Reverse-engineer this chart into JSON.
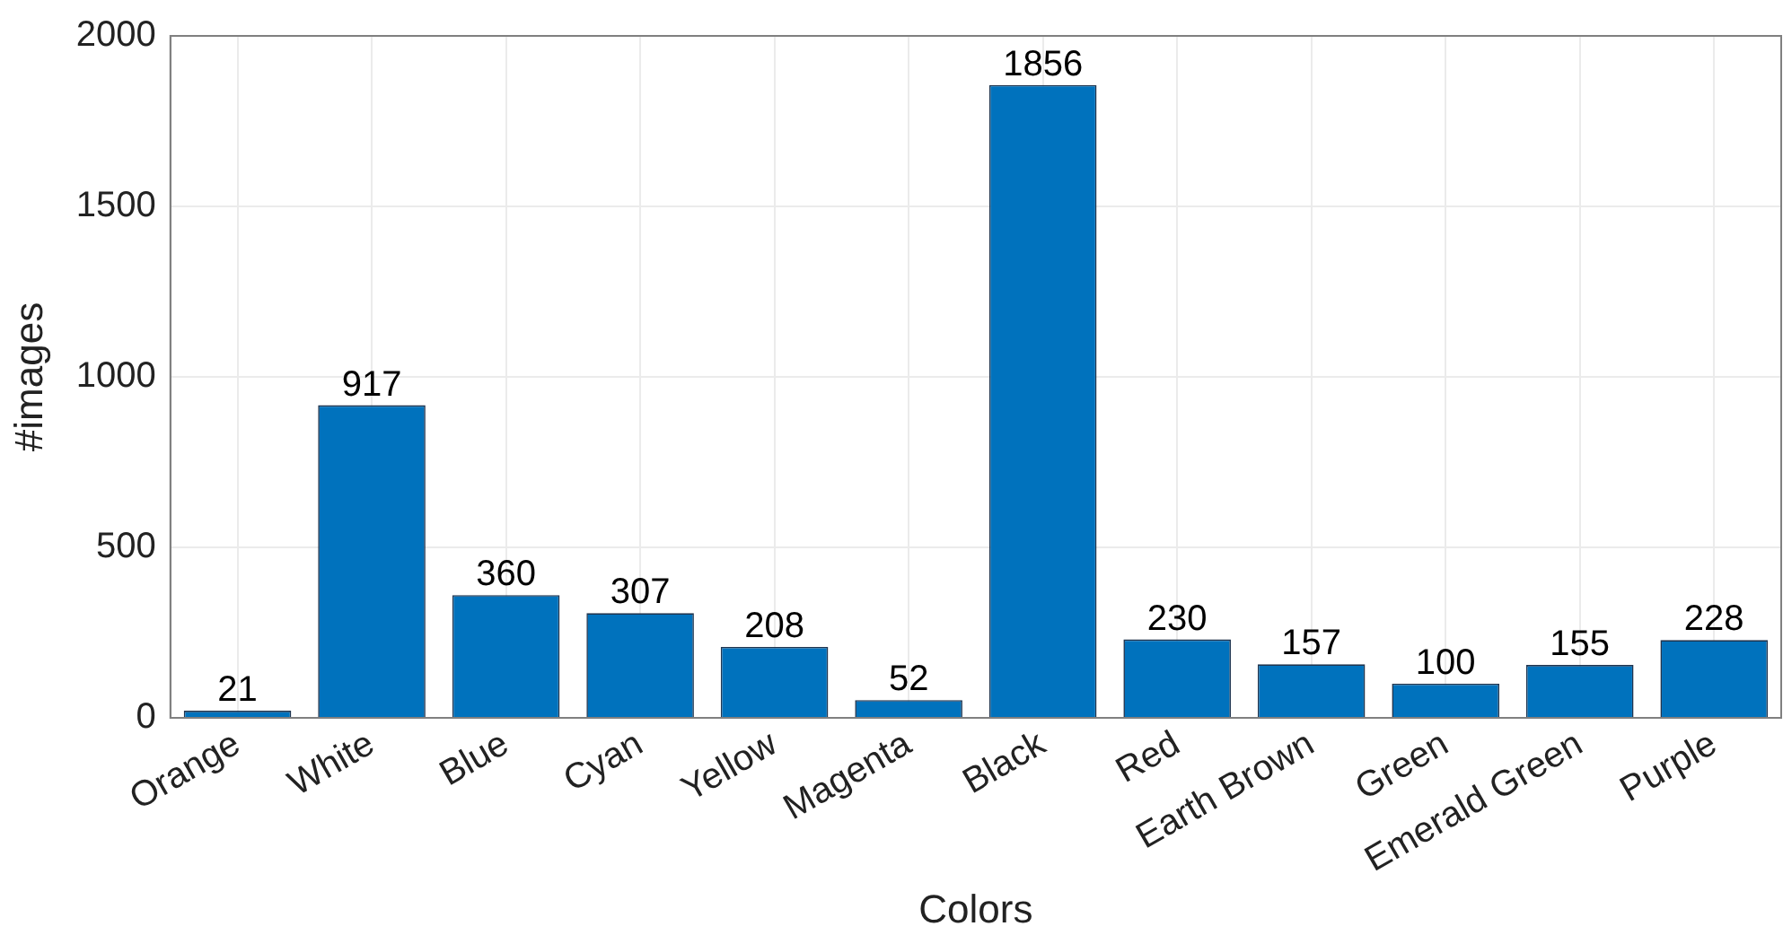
{
  "chart_data": {
    "type": "bar",
    "xlabel": "Colors",
    "ylabel": "#images",
    "categories": [
      "Orange",
      "White",
      "Blue",
      "Cyan",
      "Yellow",
      "Magenta",
      "Black",
      "Red",
      "Earth Brown",
      "Green",
      "Emerald Green",
      "Purple"
    ],
    "values": [
      21,
      917,
      360,
      307,
      208,
      52,
      1856,
      230,
      157,
      100,
      155,
      228
    ],
    "color": "#0072bd",
    "ylim": [
      0,
      2000
    ],
    "yticks": [
      0,
      500,
      1000,
      1500,
      2000
    ],
    "grid": true,
    "legend": false,
    "data_labels": true
  }
}
